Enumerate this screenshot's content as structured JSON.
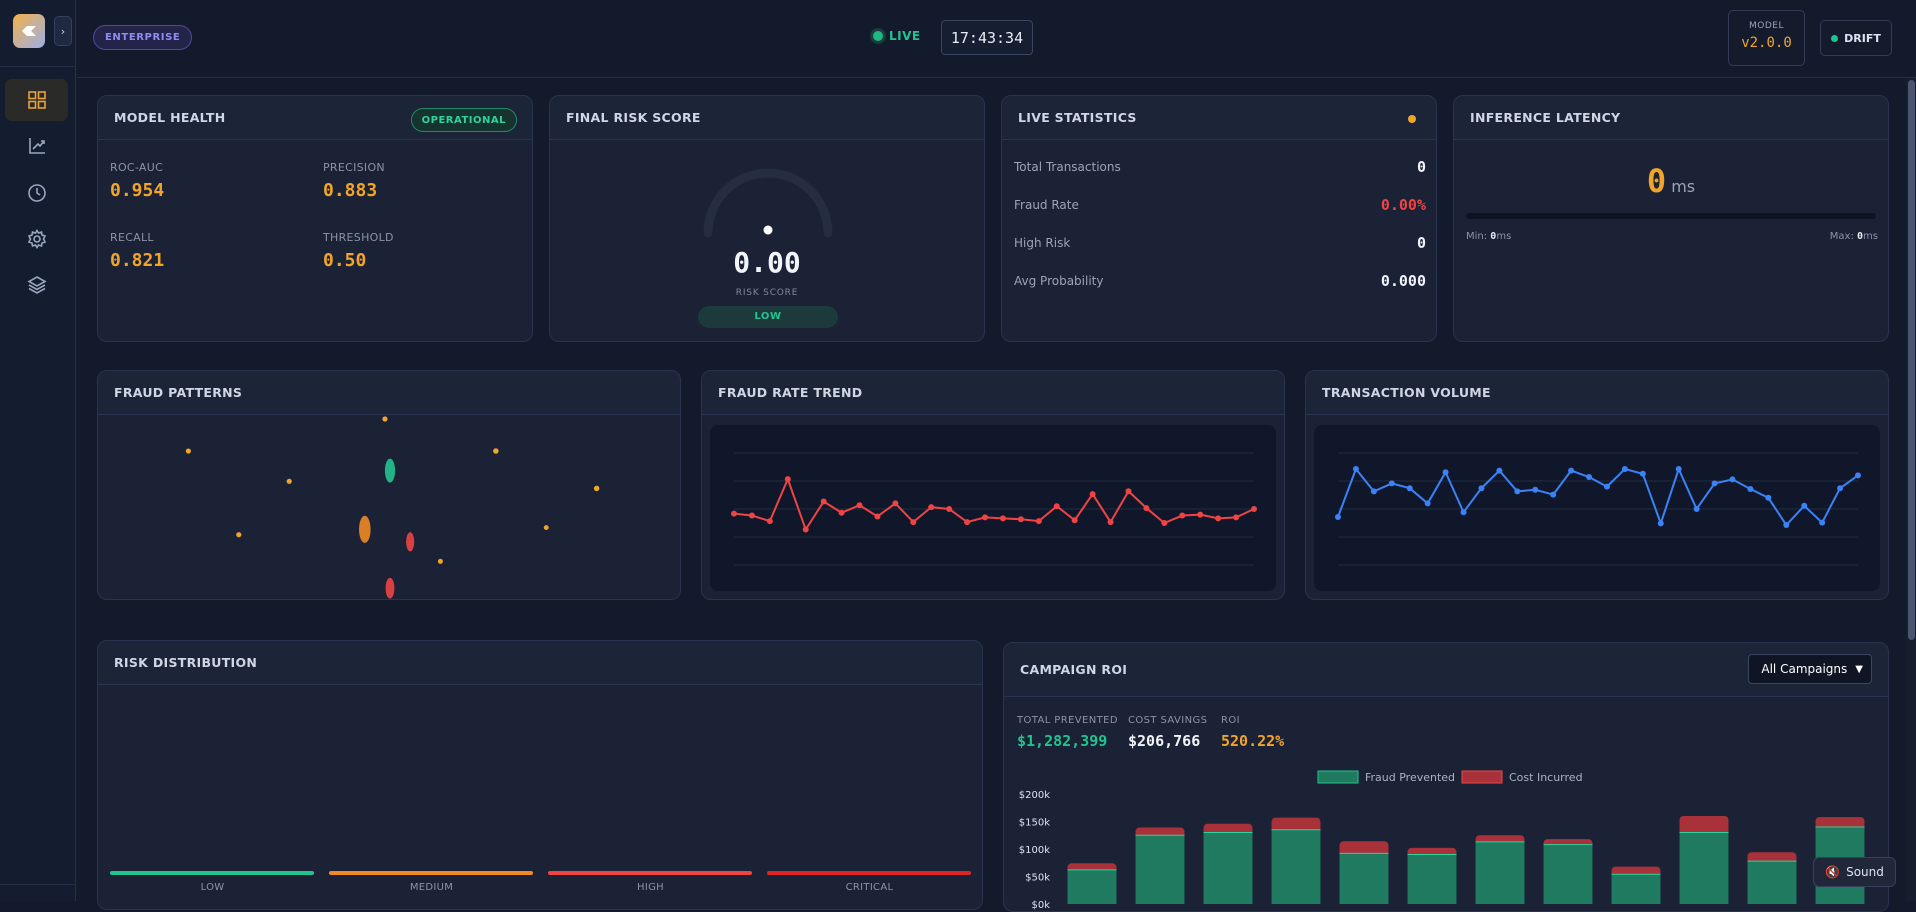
{
  "header": {
    "badge": "ENTERPRISE",
    "live_label": "LIVE",
    "clock": "17:43:34",
    "model_label": "MODEL",
    "model_version": "v2.0.0",
    "drift_label": "DRIFT"
  },
  "sidebar": {
    "items": [
      {
        "icon": "dashboard-grid-icon",
        "active": true
      },
      {
        "icon": "chart-icon",
        "active": false
      },
      {
        "icon": "clock-icon",
        "active": false
      },
      {
        "icon": "gear-icon",
        "active": false
      },
      {
        "icon": "layers-icon",
        "active": false
      }
    ]
  },
  "model_health": {
    "title": "MODEL HEALTH",
    "status": "OPERATIONAL",
    "metrics": [
      {
        "label": "ROC-AUC",
        "value": "0.954"
      },
      {
        "label": "PRECISION",
        "value": "0.883"
      },
      {
        "label": "RECALL",
        "value": "0.821"
      },
      {
        "label": "THRESHOLD",
        "value": "0.50"
      }
    ]
  },
  "risk_score": {
    "title": "FINAL RISK SCORE",
    "value": "0.00",
    "label": "RISK SCORE",
    "level": "LOW"
  },
  "live_stats": {
    "title": "LIVE STATISTICS",
    "rows": [
      {
        "label": "Total Transactions",
        "value": "0"
      },
      {
        "label": "Fraud Rate",
        "value": "0.00%"
      },
      {
        "label": "High Risk",
        "value": "0"
      },
      {
        "label": "Avg Probability",
        "value": "0.000"
      }
    ]
  },
  "latency": {
    "title": "INFERENCE LATENCY",
    "value": "0",
    "unit": "ms",
    "min_label": "Min: ",
    "min_value": "0",
    "max_label": "Max: ",
    "max_value": "0",
    "unit_short": "ms"
  },
  "fraud_patterns": {
    "title": "FRAUD PATTERNS"
  },
  "fraud_trend": {
    "title": "FRAUD RATE TREND"
  },
  "volume": {
    "title": "TRANSACTION VOLUME"
  },
  "risk_distribution": {
    "title": "RISK DISTRIBUTION",
    "categories": [
      {
        "label": "LOW",
        "color": "#22c38e"
      },
      {
        "label": "MEDIUM",
        "color": "#f08a24"
      },
      {
        "label": "HIGH",
        "color": "#ef4444"
      },
      {
        "label": "CRITICAL",
        "color": "#dc2626"
      }
    ]
  },
  "campaign": {
    "title": "CAMPAIGN ROI",
    "select_value": "All Campaigns",
    "metrics": [
      {
        "label": "TOTAL PREVENTED",
        "value": "$1,282,399",
        "color": "#22c38e"
      },
      {
        "label": "COST SAVINGS",
        "value": "$206,766",
        "color": "#f1f4f9"
      },
      {
        "label": "ROI",
        "value": "520.22%",
        "color": "#f0a52a"
      }
    ]
  },
  "sound_label": "Sound",
  "chart_data": [
    {
      "type": "line",
      "title": "FRAUD RATE TREND",
      "color": "#ef4444",
      "y": [
        0.55,
        0.53,
        0.47,
        0.92,
        0.38,
        0.68,
        0.56,
        0.64,
        0.52,
        0.66,
        0.46,
        0.62,
        0.6,
        0.46,
        0.51,
        0.5,
        0.49,
        0.47,
        0.63,
        0.48,
        0.76,
        0.46,
        0.79,
        0.61,
        0.45,
        0.53,
        0.54,
        0.5,
        0.51,
        0.6
      ],
      "ylim": [
        0,
        1.2
      ]
    },
    {
      "type": "line",
      "title": "TRANSACTION VOLUME",
      "color": "#3b82f6",
      "y": [
        0.3,
        0.9,
        0.62,
        0.72,
        0.66,
        0.47,
        0.86,
        0.36,
        0.66,
        0.88,
        0.62,
        0.64,
        0.58,
        0.88,
        0.8,
        0.68,
        0.9,
        0.84,
        0.22,
        0.9,
        0.4,
        0.72,
        0.77,
        0.65,
        0.54,
        0.2,
        0.44,
        0.23,
        0.66,
        0.82
      ],
      "ylim": [
        -0.3,
        1.1
      ]
    },
    {
      "type": "bar",
      "stacked": true,
      "legend": "top",
      "series": [
        {
          "name": "Fraud Prevented",
          "color": "#1f7a5f",
          "values": [
            62000,
            125000,
            130000,
            135000,
            92000,
            90000,
            113000,
            108000,
            54000,
            130000,
            78000,
            140000
          ]
        },
        {
          "name": "Cost Incurred",
          "color": "#a9323a",
          "values": [
            12000,
            14000,
            16000,
            22000,
            22000,
            12000,
            12000,
            10000,
            14000,
            30000,
            16000,
            18000
          ]
        }
      ],
      "ylim": [
        0,
        200000
      ],
      "yticks": [
        "$0k",
        "$50k",
        "$100k",
        "$150k",
        "$200k"
      ]
    },
    {
      "type": "scatter",
      "title": "FRAUD PATTERNS",
      "points": [
        {
          "x": 0.49,
          "y": 1.0,
          "color": "#f0a52a",
          "r": 1
        },
        {
          "x": 0.1,
          "y": 0.82,
          "color": "#f0a52a",
          "r": 1
        },
        {
          "x": 0.71,
          "y": 0.82,
          "color": "#f0a52a",
          "r": 1.2
        },
        {
          "x": 0.5,
          "y": 0.71,
          "color": "#22c38e",
          "r": 3
        },
        {
          "x": 0.3,
          "y": 0.65,
          "color": "#f0a52a",
          "r": 1
        },
        {
          "x": 0.91,
          "y": 0.61,
          "color": "#f0a52a",
          "r": 1.2
        },
        {
          "x": 0.45,
          "y": 0.38,
          "color": "#f08a24",
          "r": 3.4
        },
        {
          "x": 0.2,
          "y": 0.35,
          "color": "#f0a52a",
          "r": 1
        },
        {
          "x": 0.81,
          "y": 0.39,
          "color": "#f0a52a",
          "r": 0.8
        },
        {
          "x": 0.54,
          "y": 0.31,
          "color": "#ef4444",
          "r": 2.4
        },
        {
          "x": 0.6,
          "y": 0.2,
          "color": "#f0a52a",
          "r": 0.9
        },
        {
          "x": 0.5,
          "y": 0.05,
          "color": "#ef4444",
          "r": 2.6
        }
      ]
    }
  ]
}
